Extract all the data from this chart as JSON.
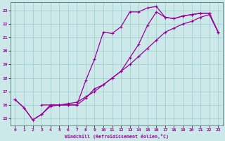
{
  "xlabel": "Windchill (Refroidissement éolien,°C)",
  "bg_color": "#cce8e8",
  "line_color": "#990099",
  "grid_color": "#99cccc",
  "xlim": [
    -0.5,
    23.5
  ],
  "ylim": [
    14.5,
    23.6
  ],
  "yticks": [
    15,
    16,
    17,
    18,
    19,
    20,
    21,
    22,
    23
  ],
  "xticks": [
    0,
    1,
    2,
    3,
    4,
    5,
    6,
    7,
    8,
    9,
    10,
    11,
    12,
    13,
    14,
    15,
    16,
    17,
    18,
    19,
    20,
    21,
    22,
    23
  ],
  "line1_x": [
    0,
    1,
    2,
    3,
    4,
    5,
    6,
    7,
    8,
    9,
    10,
    11,
    12,
    13,
    14,
    15,
    16,
    17,
    18,
    19,
    20,
    21,
    22,
    23
  ],
  "line1_y": [
    16.4,
    15.8,
    14.9,
    15.3,
    16.0,
    16.0,
    16.0,
    16.0,
    17.8,
    19.4,
    21.4,
    21.3,
    21.8,
    22.9,
    22.9,
    23.2,
    23.3,
    22.5,
    22.4,
    22.6,
    22.7,
    22.8,
    22.8,
    21.4
  ],
  "line2_x": [
    0,
    1,
    2,
    3,
    4,
    5,
    6,
    7,
    8,
    9,
    10,
    11,
    12,
    13,
    14,
    15,
    16,
    17,
    18,
    19,
    20,
    21,
    22,
    23
  ],
  "line2_y": [
    16.4,
    15.8,
    14.9,
    15.3,
    15.9,
    16.0,
    16.1,
    16.2,
    16.6,
    17.0,
    17.5,
    18.0,
    18.5,
    19.0,
    19.6,
    20.2,
    20.8,
    21.4,
    21.7,
    22.0,
    22.2,
    22.5,
    22.7,
    21.4
  ],
  "line3_x": [
    3,
    4,
    5,
    6,
    7,
    8,
    9,
    10,
    11,
    12,
    13,
    14,
    15,
    16,
    17,
    18,
    19,
    20,
    21,
    22,
    23
  ],
  "line3_y": [
    16.0,
    16.0,
    16.0,
    16.0,
    16.0,
    16.5,
    17.2,
    17.5,
    18.0,
    18.5,
    19.5,
    20.5,
    21.9,
    22.9,
    22.5,
    22.4,
    22.6,
    22.7,
    22.8,
    22.8,
    21.4
  ]
}
